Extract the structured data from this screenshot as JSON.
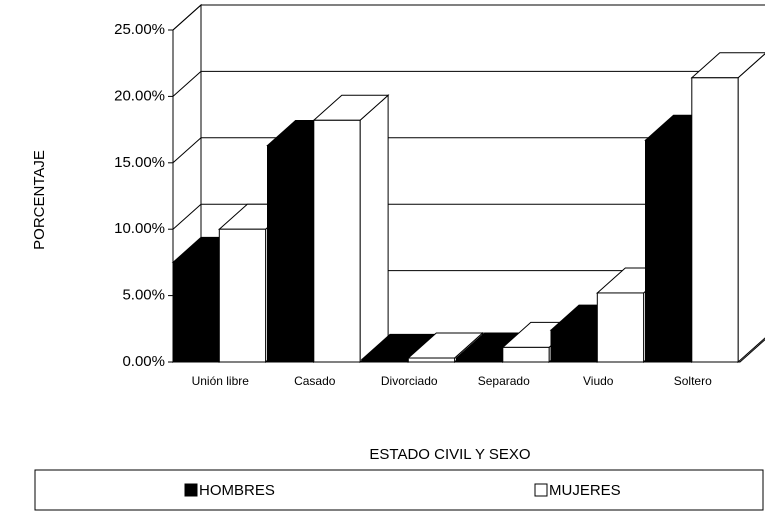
{
  "chart_data": {
    "type": "bar3d",
    "categories": [
      "Unión libre",
      "Casado",
      "Divorciado",
      "Separado",
      "Viudo",
      "Soltero"
    ],
    "series": [
      {
        "name": "HOMBRES",
        "color": "#000000",
        "values": [
          7.5,
          16.3,
          0.2,
          0.3,
          2.4,
          16.7
        ]
      },
      {
        "name": "MUJERES",
        "color": "#ffffff",
        "values": [
          10.0,
          18.2,
          0.3,
          1.1,
          5.2,
          21.4
        ]
      }
    ],
    "ylabel": "PORCENTAJE",
    "xlabel": "ESTADO CIVIL Y SEXO",
    "ylim": [
      0,
      25
    ],
    "yticks": [
      {
        "value": 0,
        "label": "0.00%"
      },
      {
        "value": 5,
        "label": "5.00%"
      },
      {
        "value": 10,
        "label": "10.00%"
      },
      {
        "value": 15,
        "label": "15.00%"
      },
      {
        "value": 20,
        "label": "20.00%"
      },
      {
        "value": 25,
        "label": "25.00%"
      }
    ],
    "grid": true,
    "legend": "bottom"
  }
}
